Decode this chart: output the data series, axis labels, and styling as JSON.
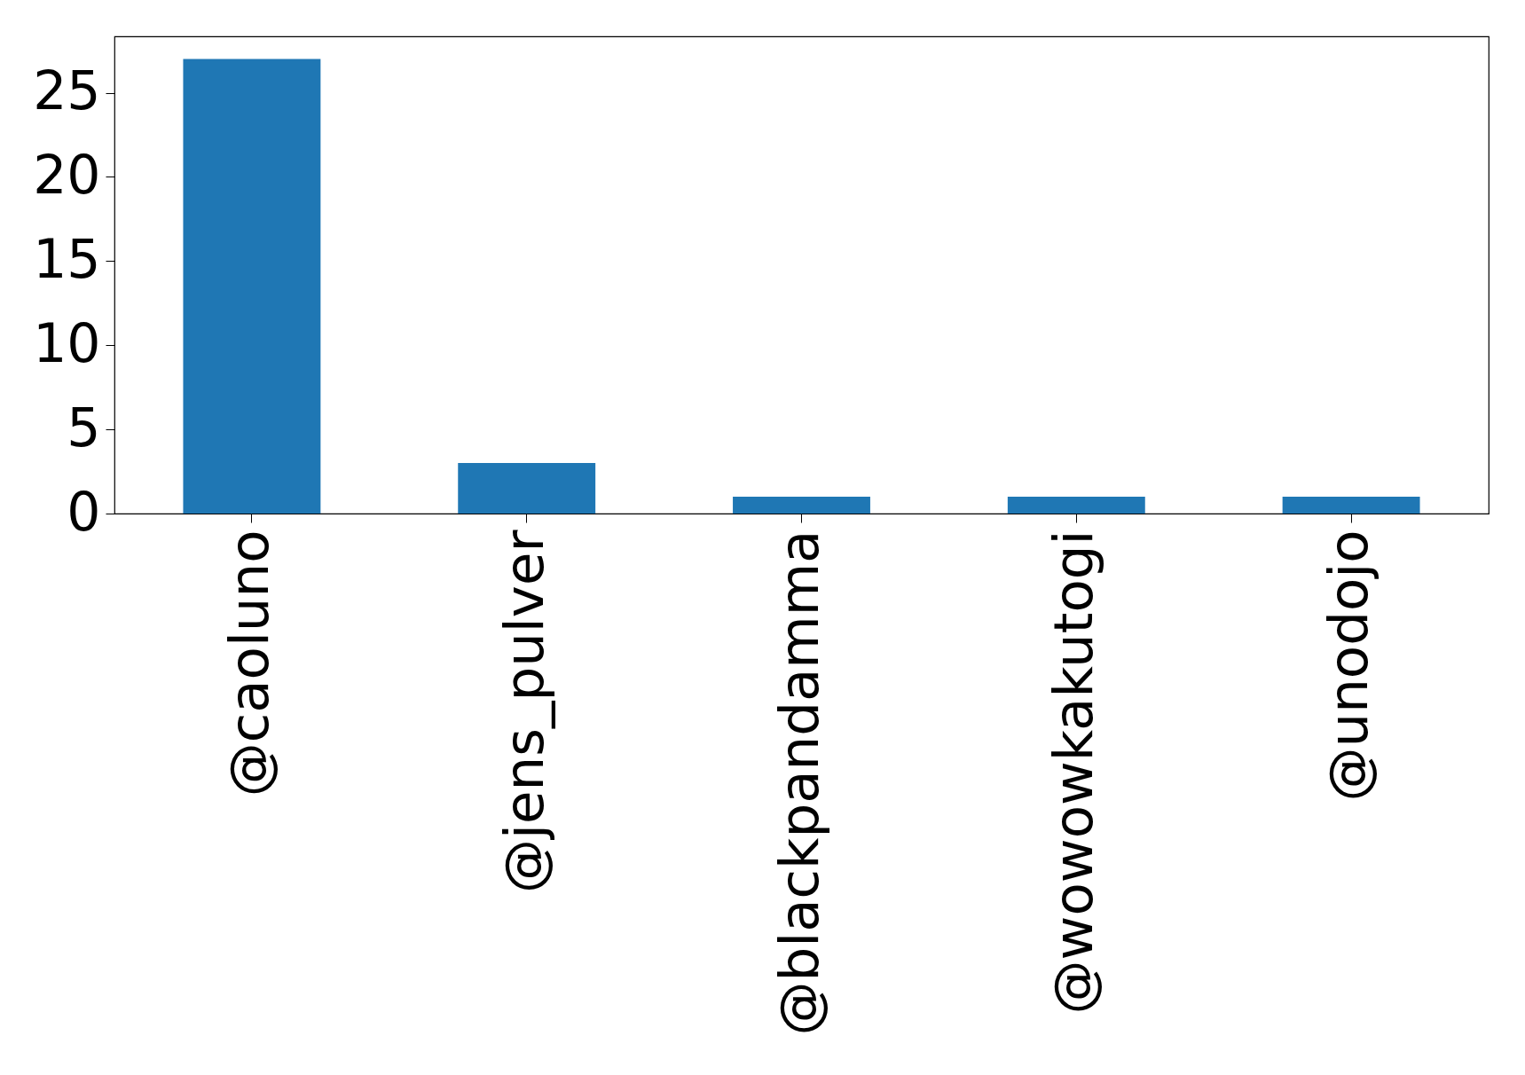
{
  "chart_data": {
    "type": "bar",
    "categories": [
      "@caoluno",
      "@jens_pulver",
      "@blackpandamma",
      "@wowowkakutogi",
      "@unodojo"
    ],
    "values": [
      27,
      3,
      1,
      1,
      1
    ],
    "color": "#1f77b4",
    "ylim": [
      0,
      28.35
    ],
    "yticks": [
      0,
      5,
      10,
      15,
      20,
      25
    ],
    "grid": false
  }
}
